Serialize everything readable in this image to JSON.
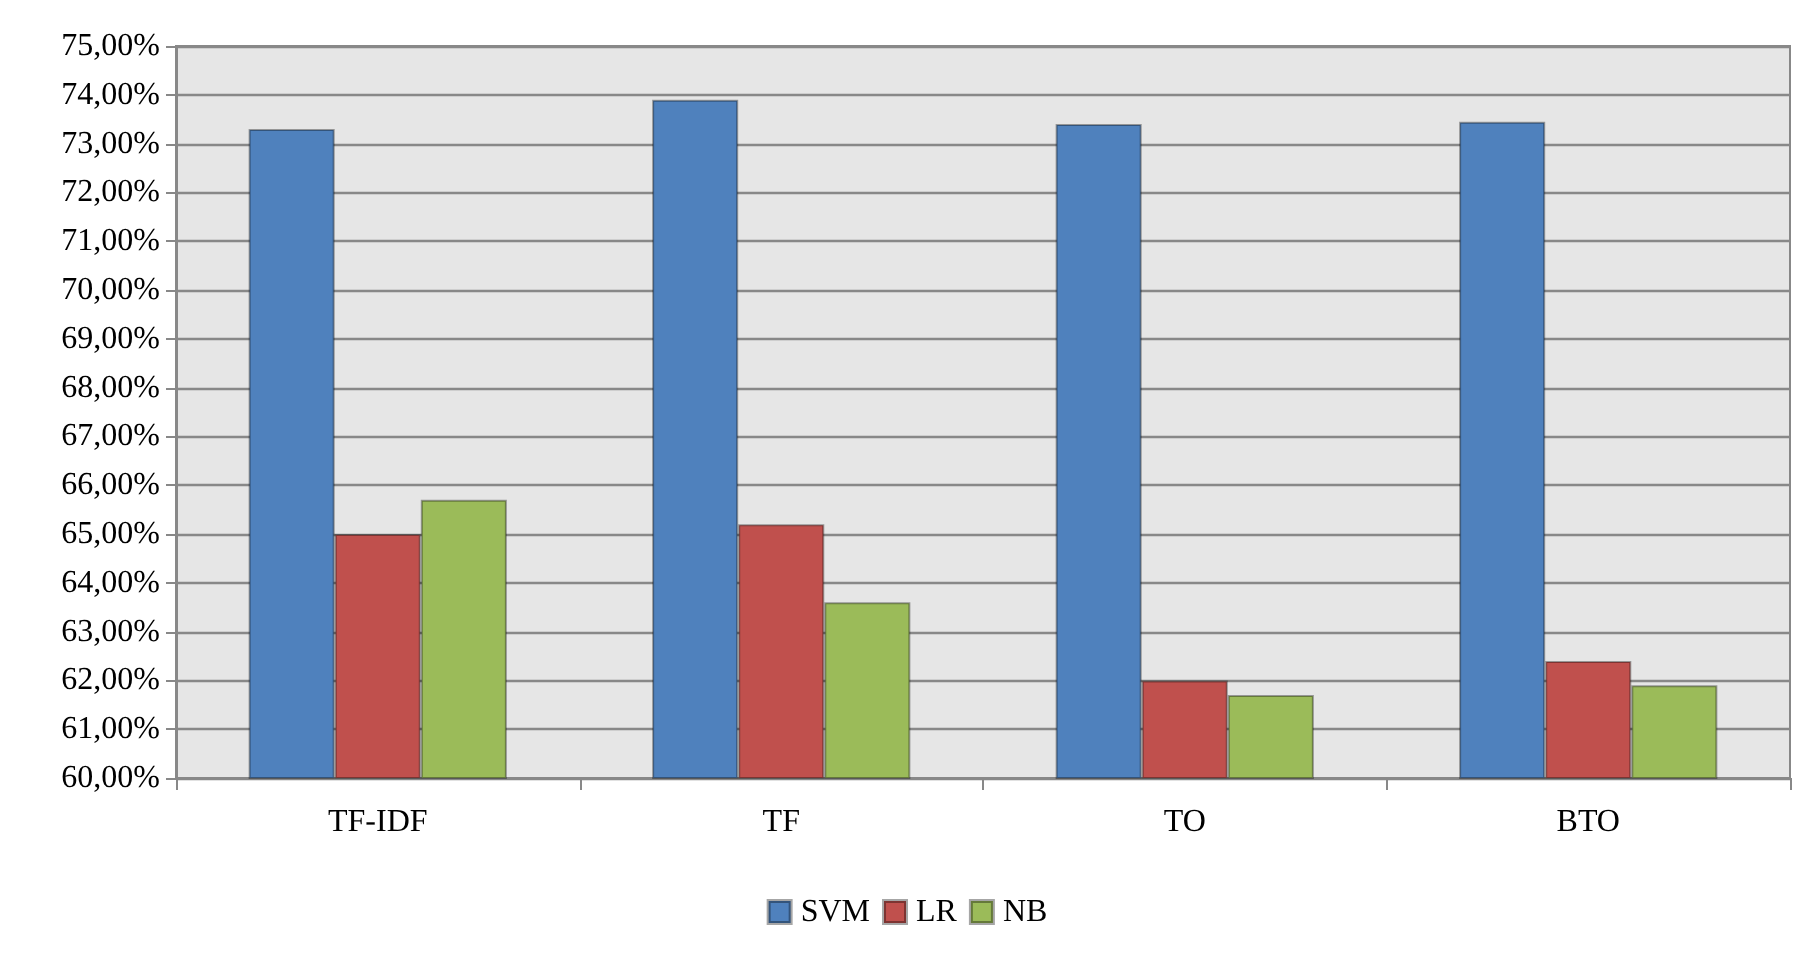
{
  "chart_data": {
    "type": "bar",
    "categories": [
      "TF-IDF",
      "TF",
      "TO",
      "BTO"
    ],
    "series": [
      {
        "name": "SVM",
        "color": "#4f81bd",
        "values": [
          73.3,
          73.9,
          73.4,
          73.45
        ]
      },
      {
        "name": "LR",
        "color": "#c0504d",
        "values": [
          65.0,
          65.2,
          62.0,
          62.4
        ]
      },
      {
        "name": "NB",
        "color": "#9bbb59",
        "values": [
          65.7,
          63.6,
          61.7,
          61.9
        ]
      }
    ],
    "ylim": [
      60,
      75
    ],
    "yticks": [
      {
        "value": 60,
        "label": "60,00%"
      },
      {
        "value": 61,
        "label": "61,00%"
      },
      {
        "value": 62,
        "label": "62,00%"
      },
      {
        "value": 63,
        "label": "63,00%"
      },
      {
        "value": 64,
        "label": "64,00%"
      },
      {
        "value": 65,
        "label": "65,00%"
      },
      {
        "value": 66,
        "label": "66,00%"
      },
      {
        "value": 67,
        "label": "67,00%"
      },
      {
        "value": 68,
        "label": "68,00%"
      },
      {
        "value": 69,
        "label": "69,00%"
      },
      {
        "value": 70,
        "label": "70,00%"
      },
      {
        "value": 71,
        "label": "71,00%"
      },
      {
        "value": 72,
        "label": "72,00%"
      },
      {
        "value": 73,
        "label": "73,00%"
      },
      {
        "value": 74,
        "label": "74,00%"
      },
      {
        "value": 75,
        "label": "75,00%"
      }
    ],
    "grid": "y",
    "legend": "bottom"
  }
}
